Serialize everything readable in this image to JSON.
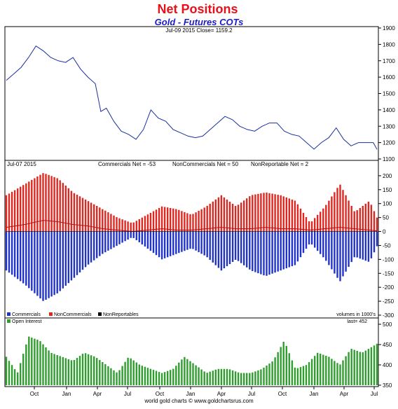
{
  "header": {
    "title": "Net Positions",
    "subtitle": "Gold - Futures COTs",
    "info": "Jul-09 2015   Close= 1159.2"
  },
  "panel2": {
    "date": "Jul-07 2015",
    "commercials_net": "Commercials Net = -53",
    "noncommercials_net": "NonCommercials Net = 50",
    "nonreportable_net": "NonReportable Net = 2"
  },
  "legend": {
    "commercials": "Commercials",
    "noncommercials": "NonCommercials",
    "nonreportables": "NonReportables",
    "volume_note": "volumes in 1000's",
    "open_interest": "Open Interest",
    "last": "last= 452"
  },
  "x_ticks": [
    "Oct",
    "Jan",
    "Apr",
    "Jul",
    "Oct",
    "Jan",
    "Apr",
    "Jul",
    "Oct",
    "Jan",
    "Apr",
    "Jul"
  ],
  "footer": "world gold charts © www.goldchartsrus.com",
  "colors": {
    "title": "#e8101a",
    "subtitle": "#1a1acc",
    "price_line": "#1c2fa0",
    "commercials": "#1f32cc",
    "noncommercials": "#e0271f",
    "nonreportables_line": "#b01010",
    "open_interest": "#2f9e2f"
  },
  "chart_data": [
    {
      "type": "line",
      "title": "Gold - Futures COTs",
      "ylim": [
        1100,
        1900
      ],
      "yticks": [
        1100,
        1200,
        1300,
        1400,
        1500,
        1600,
        1700,
        1800,
        1900
      ],
      "series": [
        {
          "name": "Close",
          "x": [
            0,
            0.02,
            0.04,
            0.06,
            0.08,
            0.1,
            0.12,
            0.14,
            0.16,
            0.18,
            0.2,
            0.22,
            0.24,
            0.255,
            0.27,
            0.29,
            0.31,
            0.33,
            0.35,
            0.37,
            0.39,
            0.41,
            0.43,
            0.45,
            0.47,
            0.49,
            0.51,
            0.53,
            0.55,
            0.57,
            0.59,
            0.61,
            0.63,
            0.65,
            0.67,
            0.69,
            0.71,
            0.73,
            0.75,
            0.77,
            0.79,
            0.81,
            0.83,
            0.85,
            0.87,
            0.89,
            0.91,
            0.93,
            0.95,
            0.97,
            0.99,
            1.0
          ],
          "values": [
            1580,
            1620,
            1660,
            1720,
            1790,
            1760,
            1720,
            1700,
            1690,
            1720,
            1650,
            1600,
            1560,
            1390,
            1410,
            1330,
            1270,
            1250,
            1220,
            1280,
            1400,
            1350,
            1330,
            1280,
            1260,
            1240,
            1230,
            1240,
            1280,
            1320,
            1360,
            1340,
            1300,
            1280,
            1270,
            1300,
            1320,
            1320,
            1270,
            1250,
            1240,
            1200,
            1160,
            1200,
            1230,
            1290,
            1220,
            1180,
            1200,
            1200,
            1200,
            1159
          ]
        }
      ]
    },
    {
      "type": "bar",
      "ylim": [
        -300,
        250
      ],
      "yticks": [
        -300,
        -250,
        -200,
        -150,
        -100,
        -50,
        0,
        50,
        100,
        150,
        200
      ],
      "series": [
        {
          "name": "NonCommercials",
          "x": [
            0,
            0.05,
            0.1,
            0.14,
            0.18,
            0.22,
            0.26,
            0.3,
            0.34,
            0.38,
            0.42,
            0.46,
            0.5,
            0.54,
            0.58,
            0.62,
            0.66,
            0.7,
            0.74,
            0.78,
            0.82,
            0.86,
            0.9,
            0.94,
            0.98,
            1.0
          ],
          "values": [
            130,
            170,
            210,
            190,
            140,
            110,
            80,
            50,
            30,
            60,
            90,
            80,
            60,
            90,
            130,
            90,
            130,
            140,
            130,
            110,
            30,
            90,
            170,
            70,
            110,
            50
          ]
        },
        {
          "name": "Commercials",
          "x": [
            0,
            0.05,
            0.1,
            0.14,
            0.18,
            0.22,
            0.26,
            0.3,
            0.34,
            0.38,
            0.42,
            0.46,
            0.5,
            0.54,
            0.58,
            0.62,
            0.66,
            0.7,
            0.74,
            0.78,
            0.82,
            0.86,
            0.9,
            0.94,
            0.98,
            1.0
          ],
          "values": [
            -140,
            -190,
            -250,
            -220,
            -170,
            -120,
            -80,
            -50,
            -20,
            -60,
            -100,
            -80,
            -60,
            -90,
            -140,
            -100,
            -140,
            -160,
            -140,
            -120,
            -40,
            -100,
            -180,
            -90,
            -110,
            -53
          ]
        },
        {
          "name": "NonReportables",
          "x": [
            0,
            0.05,
            0.1,
            0.14,
            0.18,
            0.22,
            0.26,
            0.3,
            0.34,
            0.38,
            0.42,
            0.46,
            0.5,
            0.54,
            0.58,
            0.62,
            0.66,
            0.7,
            0.74,
            0.78,
            0.82,
            0.86,
            0.9,
            0.94,
            0.98,
            1.0
          ],
          "values": [
            15,
            25,
            40,
            35,
            25,
            20,
            10,
            5,
            0,
            5,
            10,
            5,
            5,
            10,
            15,
            10,
            10,
            15,
            10,
            10,
            5,
            10,
            15,
            10,
            5,
            2
          ]
        }
      ]
    },
    {
      "type": "bar",
      "ylim": [
        350,
        500
      ],
      "yticks": [
        350,
        400,
        450,
        500
      ],
      "series": [
        {
          "name": "Open Interest",
          "x": [
            0,
            0.03,
            0.06,
            0.09,
            0.12,
            0.15,
            0.18,
            0.21,
            0.24,
            0.27,
            0.3,
            0.33,
            0.36,
            0.39,
            0.42,
            0.45,
            0.48,
            0.51,
            0.54,
            0.57,
            0.6,
            0.63,
            0.66,
            0.69,
            0.72,
            0.75,
            0.78,
            0.81,
            0.84,
            0.87,
            0.9,
            0.93,
            0.96,
            1.0
          ],
          "values": [
            420,
            380,
            470,
            460,
            430,
            420,
            410,
            430,
            420,
            400,
            380,
            420,
            400,
            390,
            380,
            390,
            420,
            400,
            380,
            390,
            390,
            380,
            380,
            390,
            410,
            460,
            390,
            400,
            430,
            420,
            400,
            440,
            430,
            452
          ]
        }
      ]
    }
  ]
}
